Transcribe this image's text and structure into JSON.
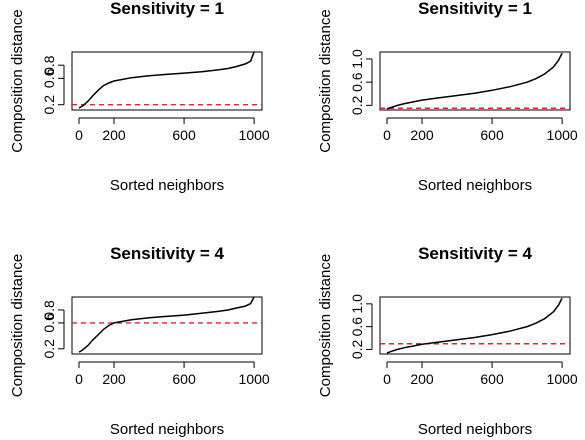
{
  "chart_data": [
    {
      "type": "line",
      "title": "Sensitivity =  1",
      "xlabel": "Sorted neighbors",
      "ylabel": "Composition distance",
      "xlim": [
        -40,
        1045
      ],
      "ylim": [
        0.12,
        1.0
      ],
      "xticks": [
        0,
        200,
        600,
        1000
      ],
      "yticks": [
        "0.2",
        "0.6",
        "0.8"
      ],
      "threshold": 0.2,
      "threshold_color": "#e8222a",
      "series": [
        {
          "x": [
            0,
            20,
            50,
            80,
            110,
            140,
            170,
            200,
            300,
            400,
            500,
            600,
            700,
            800,
            850,
            900,
            950,
            980,
            1000
          ],
          "y": [
            0.15,
            0.18,
            0.25,
            0.34,
            0.42,
            0.49,
            0.53,
            0.56,
            0.61,
            0.64,
            0.66,
            0.68,
            0.7,
            0.73,
            0.75,
            0.78,
            0.82,
            0.86,
            1.0
          ]
        }
      ]
    },
    {
      "type": "line",
      "title": "Sensitivity =  1",
      "xlabel": "Sorted neighbors",
      "ylabel": "Composition distance",
      "xlim": [
        -40,
        1045
      ],
      "ylim": [
        0.12,
        1.12
      ],
      "xticks": [
        0,
        200,
        600,
        1000
      ],
      "yticks": [
        "0.2",
        "0.6",
        "1.0"
      ],
      "threshold": 0.15,
      "threshold_color": "#e8222a",
      "series": [
        {
          "x": [
            0,
            30,
            60,
            100,
            150,
            200,
            300,
            400,
            500,
            600,
            700,
            800,
            850,
            900,
            950,
            980,
            1000
          ],
          "y": [
            0.14,
            0.17,
            0.2,
            0.23,
            0.26,
            0.29,
            0.33,
            0.37,
            0.41,
            0.46,
            0.52,
            0.6,
            0.66,
            0.74,
            0.86,
            0.98,
            1.1
          ]
        }
      ]
    },
    {
      "type": "line",
      "title": "Sensitivity =  4",
      "xlabel": "Sorted neighbors",
      "ylabel": "Composition distance",
      "xlim": [
        -40,
        1045
      ],
      "ylim": [
        0.12,
        1.0
      ],
      "xticks": [
        0,
        200,
        600,
        1000
      ],
      "yticks": [
        "0.2",
        "0.6",
        "0.8"
      ],
      "threshold": 0.6,
      "threshold_color": "#e8222a",
      "series": [
        {
          "x": [
            0,
            20,
            50,
            80,
            110,
            140,
            170,
            200,
            300,
            400,
            500,
            600,
            700,
            800,
            850,
            900,
            950,
            980,
            1000
          ],
          "y": [
            0.15,
            0.18,
            0.25,
            0.34,
            0.42,
            0.5,
            0.56,
            0.6,
            0.65,
            0.68,
            0.7,
            0.72,
            0.75,
            0.78,
            0.8,
            0.83,
            0.86,
            0.9,
            1.0
          ]
        }
      ]
    },
    {
      "type": "line",
      "title": "Sensitivity =  4",
      "xlabel": "Sorted neighbors",
      "ylabel": "Composition distance",
      "xlim": [
        -40,
        1045
      ],
      "ylim": [
        0.12,
        1.12
      ],
      "xticks": [
        0,
        200,
        600,
        1000
      ],
      "yticks": [
        "0.2",
        "0.6",
        "1.0"
      ],
      "threshold": 0.3,
      "threshold_color": "#e8222a",
      "series": [
        {
          "x": [
            0,
            30,
            60,
            100,
            150,
            200,
            300,
            400,
            500,
            600,
            700,
            800,
            850,
            900,
            950,
            980,
            1000
          ],
          "y": [
            0.14,
            0.17,
            0.2,
            0.23,
            0.26,
            0.29,
            0.33,
            0.37,
            0.41,
            0.46,
            0.52,
            0.6,
            0.66,
            0.74,
            0.86,
            0.98,
            1.1
          ]
        }
      ]
    }
  ]
}
